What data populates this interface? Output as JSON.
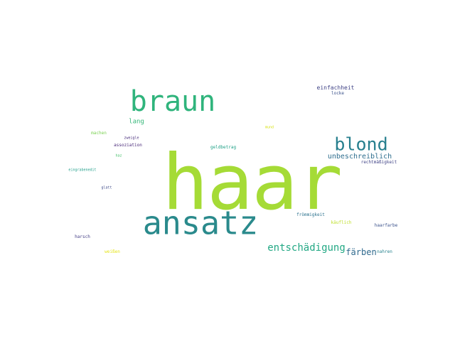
{
  "words": {
    "haar": {
      "text": "haar",
      "color": "#a5db36"
    },
    "braun": {
      "text": "braun",
      "color": "#2fb47c"
    },
    "ansatz": {
      "text": "ansatz",
      "color": "#2a8a8c"
    },
    "blond": {
      "text": "blond",
      "color": "#277f8e"
    },
    "entschaedigung": {
      "text": "entschädigung",
      "color": "#22a884"
    },
    "faerben": {
      "text": "färben",
      "color": "#306a8e"
    },
    "unbeschreiblich": {
      "text": "unbeschreiblich",
      "color": "#2e6e8e"
    },
    "einfachheit": {
      "text": "einfachheit",
      "color": "#414487"
    },
    "locke": {
      "text": "locke",
      "color": "#3b528b"
    },
    "lang": {
      "text": "lang",
      "color": "#35b779"
    },
    "machen": {
      "text": "machen",
      "color": "#7ad151"
    },
    "zweigle": {
      "text": "zweigle",
      "color": "#472d7b"
    },
    "assoziation": {
      "text": "assoziation",
      "color": "#482878"
    },
    "haz": {
      "text": "haz",
      "color": "#4ac16d"
    },
    "eingrabenedit": {
      "text": "eingrabenedit",
      "color": "#1f9e89"
    },
    "glatt": {
      "text": "glatt",
      "color": "#3e4a89"
    },
    "geldbetrag": {
      "text": "geldbetrag",
      "color": "#1fa187"
    },
    "mund": {
      "text": "mund",
      "color": "#d8e219"
    },
    "rechtmaessigkeit": {
      "text": "rechtmäßigkeit",
      "color": "#414487"
    },
    "froemmigkeit": {
      "text": "frömmigkeit",
      "color": "#2c728e"
    },
    "kaeuflich": {
      "text": "käuflich",
      "color": "#bddf26"
    },
    "haarfarbe": {
      "text": "haarfarbe",
      "color": "#3b528b"
    },
    "harsch": {
      "text": "harsch",
      "color": "#433e85"
    },
    "weissen": {
      "text": "weißen",
      "color": "#e5e419"
    },
    "nahren": {
      "text": "nahren",
      "color": "#26828e"
    }
  }
}
